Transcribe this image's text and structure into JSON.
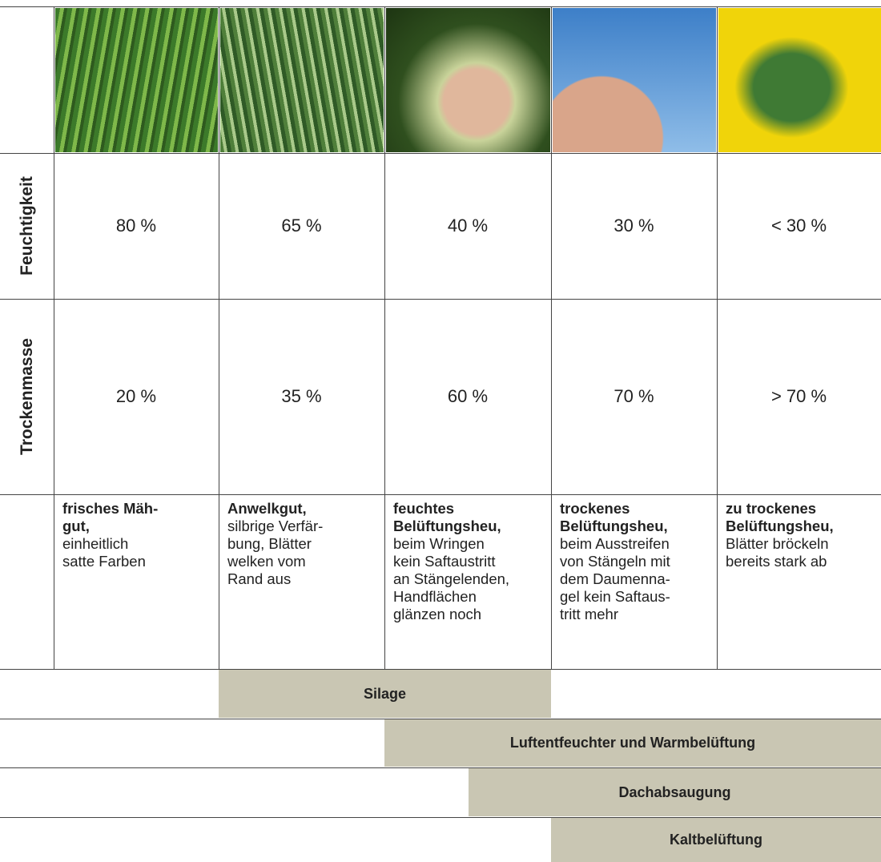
{
  "table": {
    "row_headers": [
      "Feuchtigkeit",
      "Trockenmasse"
    ],
    "rows": [
      [
        "80 %",
        "65 %",
        "40 %",
        "30 %",
        "< 30 %"
      ],
      [
        "20 %",
        "35 %",
        "60 %",
        "70 %",
        "> 70 %"
      ]
    ],
    "descriptions": [
      {
        "bold": "frisches Mäh-\ngut,",
        "text": "einheitlich\nsatte Farben"
      },
      {
        "bold": "Anwelkgut,",
        "text": "silbrige Verfär-\nbung, Blätter\nwelken vom\nRand aus"
      },
      {
        "bold": "feuchtes\nBelüftungsheu,",
        "text": "beim Wringen\nkein Saftaustritt\nan Stängelenden,\nHandflächen\nglänzen noch"
      },
      {
        "bold": "trockenes\nBelüftungsheu,",
        "text": "beim Ausstreifen\nvon Stängeln mit\ndem Daumenna-\ngel kein Saftaus-\ntritt mehr"
      },
      {
        "bold": "zu trockenes\nBelüftungsheu,",
        "text": "Blätter bröckeln\nbereits stark ab"
      }
    ],
    "methods": [
      "Silage",
      "Luftentfeuchter und Warmbelüftung",
      "Dachabsaugung",
      "Kaltbelüftung"
    ]
  }
}
